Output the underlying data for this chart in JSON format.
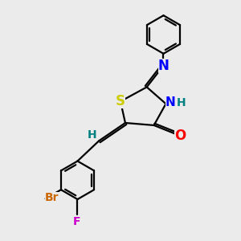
{
  "background_color": "#ebebeb",
  "bond_color": "#000000",
  "bond_width": 1.6,
  "atom_colors": {
    "S": "#cccc00",
    "N": "#0000ff",
    "O": "#ff0000",
    "Br": "#cc6600",
    "F": "#cc00cc",
    "H": "#008080",
    "C": "#000000"
  },
  "font_size_atom": 11,
  "font_size_small": 9,
  "font_size_nh": 10
}
